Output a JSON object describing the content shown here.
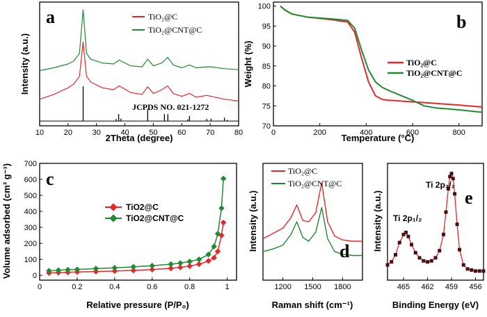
{
  "chart_data": [
    {
      "panel": "a",
      "type": "line",
      "xlabel": "2Theta (degree)",
      "ylabel": "Intensity (a.u.)",
      "xlim": [
        10,
        80
      ],
      "xticks": [
        10,
        20,
        30,
        40,
        50,
        60,
        70,
        80
      ],
      "legend_position": "top-right",
      "annotation": "JCPDS NO. 021-1272",
      "series": [
        {
          "name": "TiO₂@C",
          "color": "#e8262a",
          "x": [
            10,
            15,
            20,
            22,
            24,
            25.3,
            26.5,
            28,
            32,
            36,
            38,
            42,
            46,
            48,
            50,
            53,
            55,
            57,
            60,
            62.7,
            65,
            68.8,
            70.3,
            75,
            80
          ],
          "y": [
            0.28,
            0.33,
            0.4,
            0.44,
            0.52,
            0.88,
            0.52,
            0.46,
            0.4,
            0.38,
            0.42,
            0.35,
            0.33,
            0.41,
            0.34,
            0.38,
            0.42,
            0.34,
            0.31,
            0.34,
            0.3,
            0.32,
            0.31,
            0.28,
            0.26
          ]
        },
        {
          "name": "TiO₂@CNT@C",
          "color": "#1f8a2e",
          "x": [
            10,
            15,
            20,
            22,
            24,
            25.3,
            26.5,
            28,
            32,
            36,
            38,
            42,
            46,
            48,
            50,
            53,
            55,
            57,
            60,
            62.7,
            65,
            68.8,
            70.3,
            75,
            80
          ],
          "y": [
            0.58,
            0.61,
            0.65,
            0.68,
            0.76,
            1.22,
            0.76,
            0.7,
            0.66,
            0.65,
            0.69,
            0.63,
            0.62,
            0.7,
            0.63,
            0.66,
            0.72,
            0.64,
            0.61,
            0.64,
            0.61,
            0.62,
            0.62,
            0.6,
            0.59
          ]
        }
      ],
      "reference_peaks": {
        "x": [
          25.3,
          36.9,
          37.8,
          38.6,
          48.0,
          53.9,
          55.1,
          62.1,
          62.7,
          68.8,
          70.3,
          75.0,
          76.0
        ],
        "h": [
          1.0,
          0.06,
          0.2,
          0.07,
          0.35,
          0.2,
          0.2,
          0.05,
          0.14,
          0.06,
          0.07,
          0.1,
          0.03
        ]
      }
    },
    {
      "panel": "b",
      "type": "line",
      "xlabel": "Temperature (°C)",
      "ylabel": "Weight (%)",
      "xlim": [
        0,
        900
      ],
      "ylim": [
        70,
        101
      ],
      "xticks": [
        0,
        200,
        400,
        600,
        800
      ],
      "yticks": [
        70,
        75,
        80,
        85,
        90,
        95,
        100
      ],
      "legend_position": "right",
      "series": [
        {
          "name": "TiO₂@C",
          "color": "#e8262a",
          "x": [
            30,
            50,
            80,
            150,
            250,
            320,
            350,
            380,
            410,
            440,
            470,
            500,
            600,
            700,
            800,
            900
          ],
          "y": [
            100,
            99,
            98,
            97.2,
            96.6,
            96.0,
            93.5,
            87.0,
            81.0,
            77.5,
            76.6,
            76.4,
            76.0,
            75.6,
            75.2,
            74.7
          ]
        },
        {
          "name": "TiO₂@CNT@C",
          "color": "#1f8a2e",
          "x": [
            30,
            50,
            80,
            150,
            250,
            320,
            350,
            380,
            410,
            440,
            470,
            500,
            550,
            600,
            650,
            700,
            800,
            900
          ],
          "y": [
            100,
            99,
            98,
            97.2,
            96.8,
            96.4,
            94.5,
            89.0,
            84.0,
            81.0,
            79.6,
            78.8,
            77.6,
            76.4,
            75.0,
            74.5,
            74.0,
            73.4
          ]
        }
      ]
    },
    {
      "panel": "c",
      "type": "line",
      "xlabel": "Relative pressure (P/P₀)",
      "ylabel": "Volume adsorbed (cm³ g⁻¹)",
      "xlim": [
        0,
        1.05
      ],
      "ylim": [
        -30,
        700
      ],
      "xticks": [
        0.0,
        0.2,
        0.4,
        0.6,
        0.8,
        1.0
      ],
      "yticks": [
        0,
        100,
        200,
        300,
        400,
        500,
        600,
        700
      ],
      "legend_position": "top-center",
      "series": [
        {
          "name": "TiO2@C",
          "color": "#e8262a",
          "x": [
            0.05,
            0.1,
            0.15,
            0.2,
            0.3,
            0.4,
            0.5,
            0.6,
            0.7,
            0.75,
            0.8,
            0.85,
            0.9,
            0.93,
            0.95,
            0.97,
            0.98
          ],
          "y": [
            15,
            17,
            19,
            21,
            24,
            27,
            31,
            36,
            44,
            50,
            58,
            70,
            90,
            110,
            150,
            250,
            330
          ]
        },
        {
          "name": "TiO2@CNT@C",
          "color": "#1f8a2e",
          "x": [
            0.05,
            0.1,
            0.15,
            0.2,
            0.3,
            0.4,
            0.5,
            0.6,
            0.7,
            0.75,
            0.8,
            0.85,
            0.9,
            0.93,
            0.95,
            0.97,
            0.98
          ],
          "y": [
            28,
            32,
            35,
            37,
            42,
            47,
            53,
            60,
            70,
            77,
            86,
            100,
            130,
            180,
            260,
            420,
            605
          ]
        }
      ]
    },
    {
      "panel": "d",
      "type": "line",
      "xlabel": "Raman shift (cm⁻¹)",
      "ylabel": "Intensity (a.u.)",
      "xlim": [
        1000,
        2000
      ],
      "xticks": [
        1200,
        1500,
        1800
      ],
      "legend_position": "top",
      "series": [
        {
          "name": "TiO₂@C",
          "color": "#e8262a",
          "x": [
            1000,
            1100,
            1200,
            1280,
            1340,
            1400,
            1460,
            1530,
            1590,
            1650,
            1720,
            1800,
            1900,
            2000
          ],
          "y": [
            0.42,
            0.46,
            0.5,
            0.58,
            0.68,
            0.56,
            0.55,
            0.62,
            0.85,
            0.55,
            0.44,
            0.41,
            0.4,
            0.4
          ]
        },
        {
          "name": "TiO₂@CNT@C",
          "color": "#1f8a2e",
          "x": [
            1000,
            1100,
            1200,
            1280,
            1340,
            1400,
            1460,
            1530,
            1590,
            1650,
            1720,
            1800,
            1900,
            2000
          ],
          "y": [
            0.32,
            0.34,
            0.37,
            0.45,
            0.55,
            0.43,
            0.4,
            0.47,
            0.66,
            0.42,
            0.32,
            0.3,
            0.29,
            0.29
          ]
        }
      ]
    },
    {
      "panel": "e",
      "type": "scatter",
      "xlabel": "Binding Energy (eV)",
      "ylabel": "Intensity (a.u.)",
      "xlim": [
        467,
        455
      ],
      "xticks": [
        465,
        462,
        459,
        456
      ],
      "annotations": [
        "Ti 2p₁/₂",
        "Ti 2p₃/₂"
      ],
      "series": [
        {
          "name": "Ti 2p",
          "color": "#e8262a",
          "marker_color": "#4a0f0f",
          "x": [
            467,
            466.5,
            466,
            465.5,
            465,
            464.7,
            464.4,
            464,
            463.5,
            463,
            462.5,
            462,
            461.5,
            461,
            460.5,
            460,
            459.7,
            459.4,
            459.2,
            459,
            458.8,
            458.6,
            458.3,
            458,
            457.5,
            457,
            456.5,
            456,
            455.5,
            455
          ],
          "y": [
            0.1,
            0.13,
            0.2,
            0.32,
            0.4,
            0.42,
            0.38,
            0.3,
            0.22,
            0.17,
            0.14,
            0.13,
            0.14,
            0.17,
            0.24,
            0.4,
            0.62,
            0.85,
            0.97,
            1.0,
            0.95,
            0.8,
            0.5,
            0.25,
            0.1,
            0.06,
            0.05,
            0.04,
            0.04,
            0.04
          ]
        }
      ]
    }
  ]
}
